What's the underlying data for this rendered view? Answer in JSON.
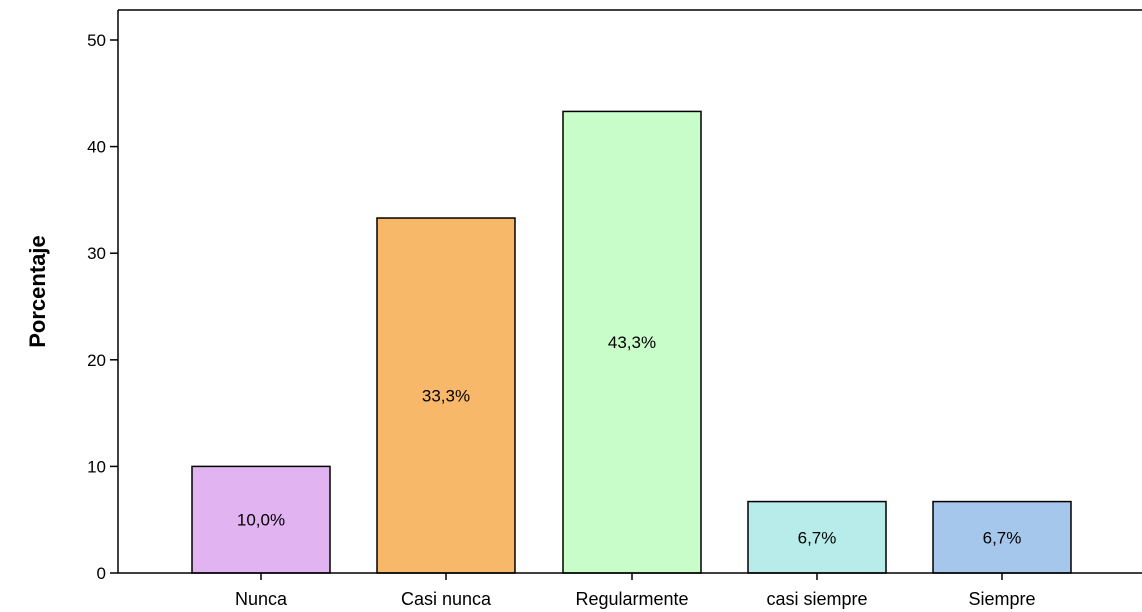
{
  "chart_data": {
    "type": "bar",
    "title": "",
    "xlabel": "",
    "ylabel": "Porcentaje",
    "ylim": [
      0,
      52
    ],
    "yticks": [
      0,
      10,
      20,
      30,
      40,
      50
    ],
    "grid": false,
    "categories": [
      "Nunca",
      "Casi nunca",
      "Regularmente",
      "casi siempre",
      "Siempre"
    ],
    "values": [
      10.0,
      33.3,
      43.3,
      6.7,
      6.7
    ],
    "data_labels": [
      "10,0%",
      "33,3%",
      "43,3%",
      "6,7%",
      "6,7%"
    ],
    "colors": [
      "#e1b3f0",
      "#f8b869",
      "#c8fcc8",
      "#b8eceb",
      "#a6c7ec"
    ]
  }
}
